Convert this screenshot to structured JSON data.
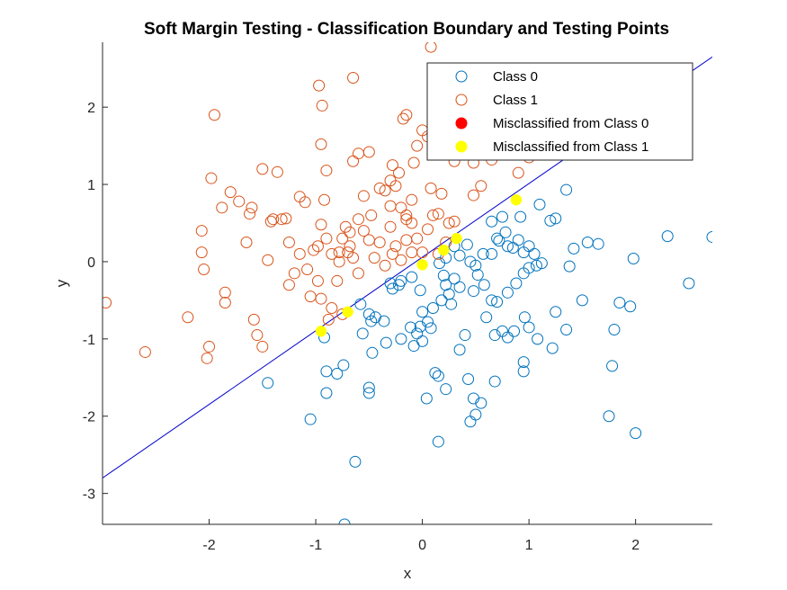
{
  "chart_data": {
    "type": "scatter",
    "title": "Soft Margin Testing - Classification Boundary and Testing Points",
    "xlabel": "x",
    "ylabel": "y",
    "xlim": [
      -3,
      2.72
    ],
    "ylim": [
      -3.4,
      2.84
    ],
    "xticks": [
      -2,
      -1,
      0,
      1,
      2
    ],
    "yticks": [
      -3,
      -2,
      -1,
      0,
      1,
      2
    ],
    "grid": false,
    "legend_position": "top-right",
    "boundary": {
      "color": "#0000cc",
      "x": [
        -3,
        2.72
      ],
      "y": [
        -2.8,
        2.65
      ]
    },
    "series": [
      {
        "name": "Class 0",
        "marker": "open-circle",
        "color": "#0072BD",
        "points": [
          [
            -1.45,
            -1.57
          ],
          [
            -1.05,
            -2.04
          ],
          [
            -0.9,
            -1.7
          ],
          [
            -0.9,
            -1.42
          ],
          [
            -0.8,
            -1.45
          ],
          [
            -0.74,
            -1.34
          ],
          [
            -0.63,
            -2.59
          ],
          [
            -0.73,
            -3.4
          ],
          [
            -0.5,
            -1.63
          ],
          [
            -0.5,
            -1.7
          ],
          [
            -0.92,
            -0.98
          ],
          [
            -0.58,
            -0.55
          ],
          [
            -0.56,
            -0.93
          ],
          [
            -0.48,
            -0.77
          ],
          [
            -0.5,
            -0.68
          ],
          [
            -0.44,
            -0.72
          ],
          [
            -0.36,
            -0.77
          ],
          [
            -0.34,
            -1.05
          ],
          [
            -0.2,
            -1.0
          ],
          [
            -0.11,
            -0.85
          ],
          [
            -0.05,
            -0.93
          ],
          [
            0.0,
            -1.03
          ],
          [
            -0.02,
            -0.84
          ],
          [
            -0.08,
            -1.09
          ],
          [
            0.05,
            -0.78
          ],
          [
            0.08,
            -0.86
          ],
          [
            -0.47,
            -1.18
          ],
          [
            -0.3,
            -0.28
          ],
          [
            -0.22,
            -0.3
          ],
          [
            -0.1,
            -0.2
          ],
          [
            -0.02,
            -0.37
          ],
          [
            0.0,
            -0.65
          ],
          [
            0.1,
            -0.6
          ],
          [
            0.18,
            -0.5
          ],
          [
            0.25,
            -0.42
          ],
          [
            0.22,
            -0.3
          ],
          [
            0.27,
            -0.55
          ],
          [
            0.3,
            -0.22
          ],
          [
            0.35,
            -0.33
          ],
          [
            0.2,
            -0.18
          ],
          [
            0.16,
            -0.02
          ],
          [
            0.22,
            0.05
          ],
          [
            0.3,
            0.2
          ],
          [
            0.35,
            0.08
          ],
          [
            0.45,
            0.0
          ],
          [
            0.5,
            -0.05
          ],
          [
            0.52,
            -0.17
          ],
          [
            0.58,
            -0.3
          ],
          [
            0.48,
            -0.38
          ],
          [
            0.57,
            0.1
          ],
          [
            0.65,
            0.1
          ],
          [
            0.72,
            0.27
          ],
          [
            0.78,
            0.38
          ],
          [
            0.75,
            0.58
          ],
          [
            0.8,
            0.2
          ],
          [
            0.85,
            0.18
          ],
          [
            0.9,
            0.28
          ],
          [
            0.95,
            0.12
          ],
          [
            1.0,
            0.2
          ],
          [
            1.05,
            0.1
          ],
          [
            1.0,
            -0.08
          ],
          [
            1.07,
            -0.05
          ],
          [
            0.95,
            -0.15
          ],
          [
            0.88,
            -0.28
          ],
          [
            0.8,
            -0.4
          ],
          [
            0.7,
            -0.52
          ],
          [
            0.65,
            -0.5
          ],
          [
            0.6,
            -0.72
          ],
          [
            0.75,
            -0.9
          ],
          [
            0.68,
            -0.95
          ],
          [
            0.8,
            -0.98
          ],
          [
            0.86,
            -0.9
          ],
          [
            0.96,
            -0.72
          ],
          [
            1.0,
            -0.85
          ],
          [
            1.08,
            -1.0
          ],
          [
            1.22,
            -1.12
          ],
          [
            0.95,
            -1.3
          ],
          [
            0.95,
            -1.42
          ],
          [
            0.68,
            -1.55
          ],
          [
            0.55,
            -1.83
          ],
          [
            0.48,
            -1.77
          ],
          [
            0.5,
            -1.98
          ],
          [
            0.45,
            -2.07
          ],
          [
            0.35,
            -1.14
          ],
          [
            0.4,
            -0.95
          ],
          [
            0.43,
            -1.52
          ],
          [
            0.22,
            -1.65
          ],
          [
            0.12,
            -1.44
          ],
          [
            0.15,
            -1.48
          ],
          [
            0.04,
            -1.77
          ],
          [
            0.15,
            -2.33
          ],
          [
            -0.2,
            -0.25
          ],
          [
            -0.28,
            -0.35
          ],
          [
            1.12,
            -0.02
          ],
          [
            1.38,
            -0.06
          ],
          [
            1.42,
            0.17
          ],
          [
            1.35,
            -0.88
          ],
          [
            1.25,
            -0.65
          ],
          [
            1.5,
            -0.5
          ],
          [
            1.55,
            0.25
          ],
          [
            1.65,
            0.23
          ],
          [
            1.35,
            0.93
          ],
          [
            1.1,
            0.74
          ],
          [
            1.2,
            0.53
          ],
          [
            1.25,
            0.56
          ],
          [
            1.8,
            -0.88
          ],
          [
            1.85,
            -0.53
          ],
          [
            1.98,
            0.04
          ],
          [
            1.95,
            -0.58
          ],
          [
            2.3,
            0.33
          ],
          [
            2.5,
            -0.28
          ],
          [
            2.72,
            0.32
          ],
          [
            1.75,
            -2.0
          ],
          [
            2.0,
            -2.22
          ],
          [
            1.78,
            -1.35
          ],
          [
            0.92,
            0.58
          ],
          [
            0.65,
            0.52
          ],
          [
            0.7,
            0.3
          ],
          [
            0.42,
            0.22
          ]
        ]
      },
      {
        "name": "Class 1",
        "marker": "open-circle",
        "color": "#D95319",
        "points": [
          [
            -2.97,
            -0.53
          ],
          [
            -2.6,
            -1.17
          ],
          [
            -2.2,
            -0.72
          ],
          [
            -2.05,
            -0.1
          ],
          [
            -2.07,
            0.4
          ],
          [
            -2.07,
            0.12
          ],
          [
            -2.02,
            -1.25
          ],
          [
            -2.0,
            -1.1
          ],
          [
            -1.95,
            1.9
          ],
          [
            -1.98,
            1.08
          ],
          [
            -1.88,
            0.7
          ],
          [
            -1.85,
            -0.4
          ],
          [
            -1.85,
            -0.53
          ],
          [
            -1.8,
            0.9
          ],
          [
            -1.72,
            0.78
          ],
          [
            -1.65,
            0.25
          ],
          [
            -1.62,
            0.62
          ],
          [
            -1.6,
            0.7
          ],
          [
            -1.58,
            -0.75
          ],
          [
            -1.55,
            -0.95
          ],
          [
            -1.5,
            -1.1
          ],
          [
            -1.5,
            1.2
          ],
          [
            -1.45,
            0.02
          ],
          [
            -1.42,
            0.52
          ],
          [
            -1.4,
            0.55
          ],
          [
            -1.36,
            1.16
          ],
          [
            -1.32,
            0.55
          ],
          [
            -1.28,
            0.56
          ],
          [
            -1.25,
            0.25
          ],
          [
            -1.2,
            -0.15
          ],
          [
            -1.15,
            0.84
          ],
          [
            -1.1,
            0.77
          ],
          [
            -1.08,
            -0.1
          ],
          [
            -1.02,
            0.15
          ],
          [
            -0.98,
            0.2
          ],
          [
            -0.95,
            0.48
          ],
          [
            -0.98,
            -0.25
          ],
          [
            -0.95,
            -0.48
          ],
          [
            -0.92,
            0.8
          ],
          [
            -0.9,
            0.3
          ],
          [
            -0.88,
            -0.75
          ],
          [
            -0.85,
            0.1
          ],
          [
            -0.8,
            -0.25
          ],
          [
            -0.78,
            0.12
          ],
          [
            -0.75,
            0.3
          ],
          [
            -0.72,
            0.45
          ],
          [
            -0.68,
            0.2
          ],
          [
            -0.65,
            0.05
          ],
          [
            -0.6,
            -0.15
          ],
          [
            -0.55,
            0.4
          ],
          [
            -0.5,
            0.28
          ],
          [
            -0.48,
            0.6
          ],
          [
            -0.45,
            0.05
          ],
          [
            -0.4,
            0.25
          ],
          [
            -0.35,
            -0.05
          ],
          [
            -0.3,
            0.45
          ],
          [
            -0.25,
            0.2
          ],
          [
            -0.2,
            0.7
          ],
          [
            -0.15,
            0.6
          ],
          [
            -0.1,
            0.8
          ],
          [
            -0.05,
            0.3
          ],
          [
            0.0,
            0.12
          ],
          [
            0.05,
            0.42
          ],
          [
            0.1,
            0.6
          ],
          [
            0.18,
            0.88
          ],
          [
            0.25,
            0.5
          ],
          [
            0.3,
            0.52
          ],
          [
            0.22,
            0.25
          ],
          [
            0.15,
            0.1
          ],
          [
            -0.97,
            2.28
          ],
          [
            -0.94,
            2.02
          ],
          [
            -0.95,
            1.52
          ],
          [
            -0.9,
            1.18
          ],
          [
            -0.65,
            2.38
          ],
          [
            -0.65,
            1.3
          ],
          [
            -0.6,
            1.4
          ],
          [
            -0.55,
            0.85
          ],
          [
            -0.5,
            1.42
          ],
          [
            -0.4,
            0.95
          ],
          [
            -0.35,
            0.92
          ],
          [
            -0.3,
            0.72
          ],
          [
            -0.28,
            1.25
          ],
          [
            -0.22,
            1.15
          ],
          [
            -0.18,
            1.85
          ],
          [
            -0.15,
            1.9
          ],
          [
            -0.08,
            1.28
          ],
          [
            -0.05,
            1.5
          ],
          [
            0.0,
            1.7
          ],
          [
            0.05,
            1.62
          ],
          [
            0.08,
            2.78
          ],
          [
            0.15,
            1.58
          ],
          [
            0.25,
            1.5
          ],
          [
            0.3,
            1.3
          ],
          [
            0.4,
            1.45
          ],
          [
            0.48,
            1.28
          ],
          [
            0.48,
            0.86
          ],
          [
            0.55,
            0.98
          ],
          [
            0.65,
            1.32
          ],
          [
            0.9,
            1.15
          ],
          [
            1.0,
            1.35
          ],
          [
            1.12,
            1.55
          ],
          [
            -0.3,
            1.05
          ],
          [
            -0.25,
            0.98
          ],
          [
            -0.15,
            0.55
          ],
          [
            -0.1,
            0.5
          ],
          [
            -0.1,
            0.12
          ],
          [
            -0.2,
            0.02
          ],
          [
            -0.28,
            0.1
          ],
          [
            -0.15,
            0.28
          ],
          [
            -1.05,
            -0.45
          ],
          [
            -0.85,
            -0.6
          ],
          [
            -0.75,
            -0.68
          ],
          [
            -0.6,
            0.55
          ],
          [
            -1.15,
            0.1
          ],
          [
            -1.25,
            -0.3
          ],
          [
            -0.78,
            0.0
          ],
          [
            -0.7,
            0.12
          ],
          [
            -0.68,
            0.38
          ],
          [
            0.08,
            0.95
          ],
          [
            0.15,
            0.62
          ]
        ]
      },
      {
        "name": "Misclassified from Class 0",
        "marker": "filled-circle",
        "color": "#FF0000",
        "points": []
      },
      {
        "name": "Misclassified from Class 1",
        "marker": "filled-circle",
        "color": "#FFFF00",
        "points": [
          [
            -0.95,
            -0.9
          ],
          [
            -0.7,
            -0.65
          ],
          [
            0.0,
            -0.04
          ],
          [
            0.2,
            0.15
          ],
          [
            0.32,
            0.3
          ],
          [
            0.88,
            0.8
          ]
        ]
      }
    ]
  }
}
